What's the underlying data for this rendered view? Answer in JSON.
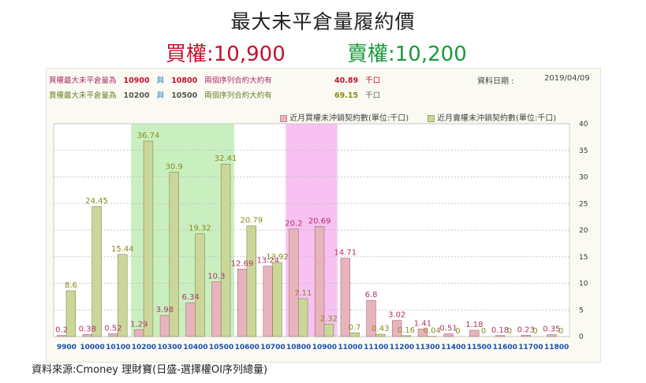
{
  "title": "最大未平倉量履約價",
  "call_summary": "買權:10,900",
  "put_summary": "賣權:10,200",
  "info": {
    "call_row": {
      "label": "買權最大未平倉量為",
      "strike1": "10900",
      "yu": "與",
      "strike2": "10800",
      "desc": "兩個序列合約大約有",
      "value": "40.89",
      "unit": "千口"
    },
    "put_row": {
      "label": "賣權最大未平倉量為",
      "strike1": "10200",
      "yu": "與",
      "strike2": "10500",
      "desc": "兩個序列合約大約有",
      "value": "69.15",
      "unit": "千口"
    },
    "date_label": "資料日期 :",
    "date": "2019/04/09"
  },
  "source": "資料來源:Cmoney 理財寶(日盛-選擇權OI序列總量)",
  "colors": {
    "call": "#e8b4bc",
    "put": "#cbd79a",
    "call_label": "#b03468",
    "put_label": "#8a8a1a",
    "green_band": "#c9efc0",
    "pink_band": "#f7c2f2",
    "axis_label": "#1a4fb0"
  },
  "chart_data": {
    "type": "bar",
    "categories": [
      "9900",
      "10000",
      "10100",
      "10200",
      "10300",
      "10400",
      "10500",
      "10600",
      "10700",
      "10800",
      "10900",
      "11000",
      "11100",
      "11200",
      "11300",
      "11400",
      "11500",
      "11600",
      "11700",
      "11800"
    ],
    "series": [
      {
        "name": "近月買權未沖銷契約數(單位:千口)",
        "values": [
          0.2,
          0.38,
          0.52,
          1.29,
          3.98,
          6.34,
          10.3,
          12.69,
          13.24,
          20.2,
          20.69,
          14.71,
          6.8,
          3.02,
          1.41,
          0.51,
          1.18,
          0.18,
          0.23,
          0.35
        ]
      },
      {
        "name": "近月賣權未沖銷契約數(單位:千口)",
        "values": [
          8.6,
          24.45,
          15.44,
          36.74,
          30.9,
          19.32,
          32.41,
          20.79,
          13.92,
          7.11,
          2.32,
          0.7,
          0.43,
          0.16,
          0.04,
          0,
          0,
          0,
          0,
          0
        ]
      }
    ],
    "yticks": [
      0,
      5,
      10,
      15,
      20,
      25,
      30,
      35,
      40
    ],
    "ylim": [
      0,
      40
    ],
    "grid": true,
    "legend_position": "top",
    "highlight_bands": [
      {
        "from": "10200",
        "to": "10500",
        "color": "green"
      },
      {
        "from": "10800",
        "to": "10900",
        "color": "pink"
      }
    ]
  }
}
